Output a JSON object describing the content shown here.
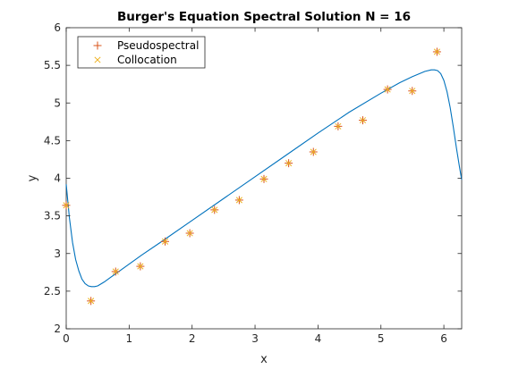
{
  "chart_data": {
    "type": "line",
    "title": "Burger's Equation Spectral Solution N = 16",
    "xlabel": "x",
    "ylabel": "y",
    "xlim": [
      0,
      6.283
    ],
    "ylim": [
      2,
      6
    ],
    "xticks": [
      0,
      1,
      2,
      3,
      4,
      5,
      6
    ],
    "yticks": [
      2,
      2.5,
      3,
      3.5,
      4,
      4.5,
      5,
      5.5,
      6
    ],
    "ytick_labels": [
      "2",
      "2.5",
      "3",
      "3.5",
      "4",
      "4.5",
      "5",
      "5.5",
      "6"
    ],
    "grid": false,
    "legend_position": "top-left",
    "curve": {
      "color": "#0072BD",
      "x": [
        0,
        0.05,
        0.1,
        0.15,
        0.2,
        0.25,
        0.3,
        0.35,
        0.4,
        0.45,
        0.5,
        0.6,
        0.7,
        0.8,
        1.0,
        1.2,
        1.5,
        2.0,
        2.5,
        3.0,
        3.5,
        4.0,
        4.5,
        5.0,
        5.3,
        5.5,
        5.7,
        5.8,
        5.85,
        5.9,
        5.95,
        6.0,
        6.05,
        6.1,
        6.15,
        6.2,
        6.25,
        6.283
      ],
      "y": [
        3.92,
        3.48,
        3.15,
        2.92,
        2.77,
        2.66,
        2.6,
        2.57,
        2.56,
        2.56,
        2.57,
        2.62,
        2.68,
        2.74,
        2.86,
        2.98,
        3.15,
        3.44,
        3.73,
        4.02,
        4.31,
        4.6,
        4.88,
        5.13,
        5.27,
        5.35,
        5.42,
        5.44,
        5.44,
        5.43,
        5.39,
        5.3,
        5.15,
        4.94,
        4.68,
        4.4,
        4.14,
        3.98
      ]
    },
    "series": [
      {
        "name": "Pseudospectral",
        "marker": "+",
        "color": "#D95319",
        "x": [
          0,
          0.3927,
          0.7854,
          1.1781,
          1.5708,
          1.9635,
          2.3562,
          2.7489,
          3.1416,
          3.5343,
          3.927,
          4.3197,
          4.7124,
          5.1051,
          5.4978,
          5.8905
        ],
        "y": [
          3.64,
          2.37,
          2.76,
          2.83,
          3.16,
          3.27,
          3.58,
          3.71,
          3.99,
          4.2,
          4.35,
          4.69,
          4.77,
          5.18,
          5.16,
          5.68
        ]
      },
      {
        "name": "Collocation",
        "marker": "x",
        "color": "#EDB120",
        "x": [
          0,
          0.3927,
          0.7854,
          1.1781,
          1.5708,
          1.9635,
          2.3562,
          2.7489,
          3.1416,
          3.5343,
          3.927,
          4.3197,
          4.7124,
          5.1051,
          5.4978,
          5.8905
        ],
        "y": [
          3.64,
          2.37,
          2.76,
          2.83,
          3.16,
          3.27,
          3.58,
          3.71,
          3.99,
          4.2,
          4.35,
          4.69,
          4.77,
          5.18,
          5.16,
          5.68
        ]
      }
    ]
  }
}
